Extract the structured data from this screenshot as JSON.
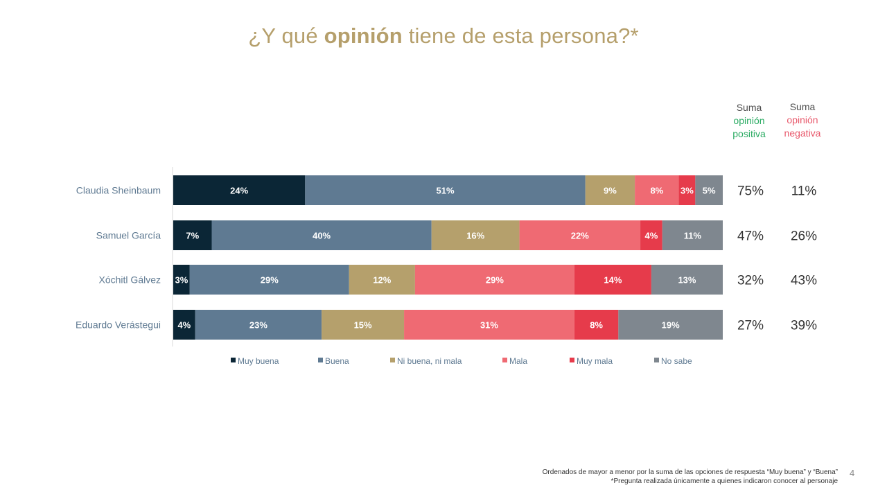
{
  "title": {
    "pre": "¿Y qué ",
    "bold": "opinión",
    "post": " tiene de esta persona?*"
  },
  "columns": {
    "positive": {
      "line1": "Suma",
      "line2": "opinión",
      "line3": "positiva"
    },
    "negative": {
      "line1": "Suma",
      "line2": "opinión",
      "line3": "negativa"
    }
  },
  "colors": {
    "positive_header": "#2bab63",
    "negative_header": "#e8576a",
    "title": "#b59f6b"
  },
  "chart_data": {
    "type": "bar",
    "orientation": "horizontal",
    "stacked": true,
    "categories": [
      "Claudia Sheinbaum",
      "Samuel García",
      "Xóchitl Gálvez",
      "Eduardo Verástegui"
    ],
    "series": [
      {
        "name": "Muy buena",
        "color": "#0b2636",
        "values": [
          24,
          7,
          3,
          4
        ],
        "labels": [
          "24%",
          "7%",
          "3%",
          "4%"
        ]
      },
      {
        "name": "Buena",
        "color": "#5f7a92",
        "values": [
          51,
          40,
          29,
          23
        ],
        "labels": [
          "51%",
          "40%",
          "29%",
          "23%"
        ]
      },
      {
        "name": "Ni buena, ni mala",
        "color": "#b5a06c",
        "values": [
          9,
          16,
          12,
          15
        ],
        "labels": [
          "9%",
          "16%",
          "12%",
          "15%"
        ]
      },
      {
        "name": "Mala",
        "color": "#ef6a73",
        "values": [
          8,
          22,
          29,
          31
        ],
        "labels": [
          "8%",
          "22%",
          "29%",
          "31%"
        ]
      },
      {
        "name": "Muy mala",
        "color": "#e63b4b",
        "values": [
          3,
          4,
          14,
          8
        ],
        "labels": [
          "3%",
          "4%",
          "14%",
          "8%"
        ]
      },
      {
        "name": "No sabe",
        "color": "#7f878f",
        "values": [
          5,
          11,
          13,
          19
        ],
        "labels": [
          "5%",
          "11%",
          "13%",
          "19%"
        ]
      }
    ],
    "positive_sum": [
      "75%",
      "47%",
      "32%",
      "27%"
    ],
    "negative_sum": [
      "11%",
      "26%",
      "43%",
      "39%"
    ],
    "legend_position": "bottom"
  },
  "footer": {
    "line1": "Ordenados de mayor a menor por la suma de las opciones de respuesta “Muy buena” y “Buena”",
    "line2": "*Pregunta realizada únicamente a quienes indicaron conocer al personaje"
  },
  "page_number": "4"
}
